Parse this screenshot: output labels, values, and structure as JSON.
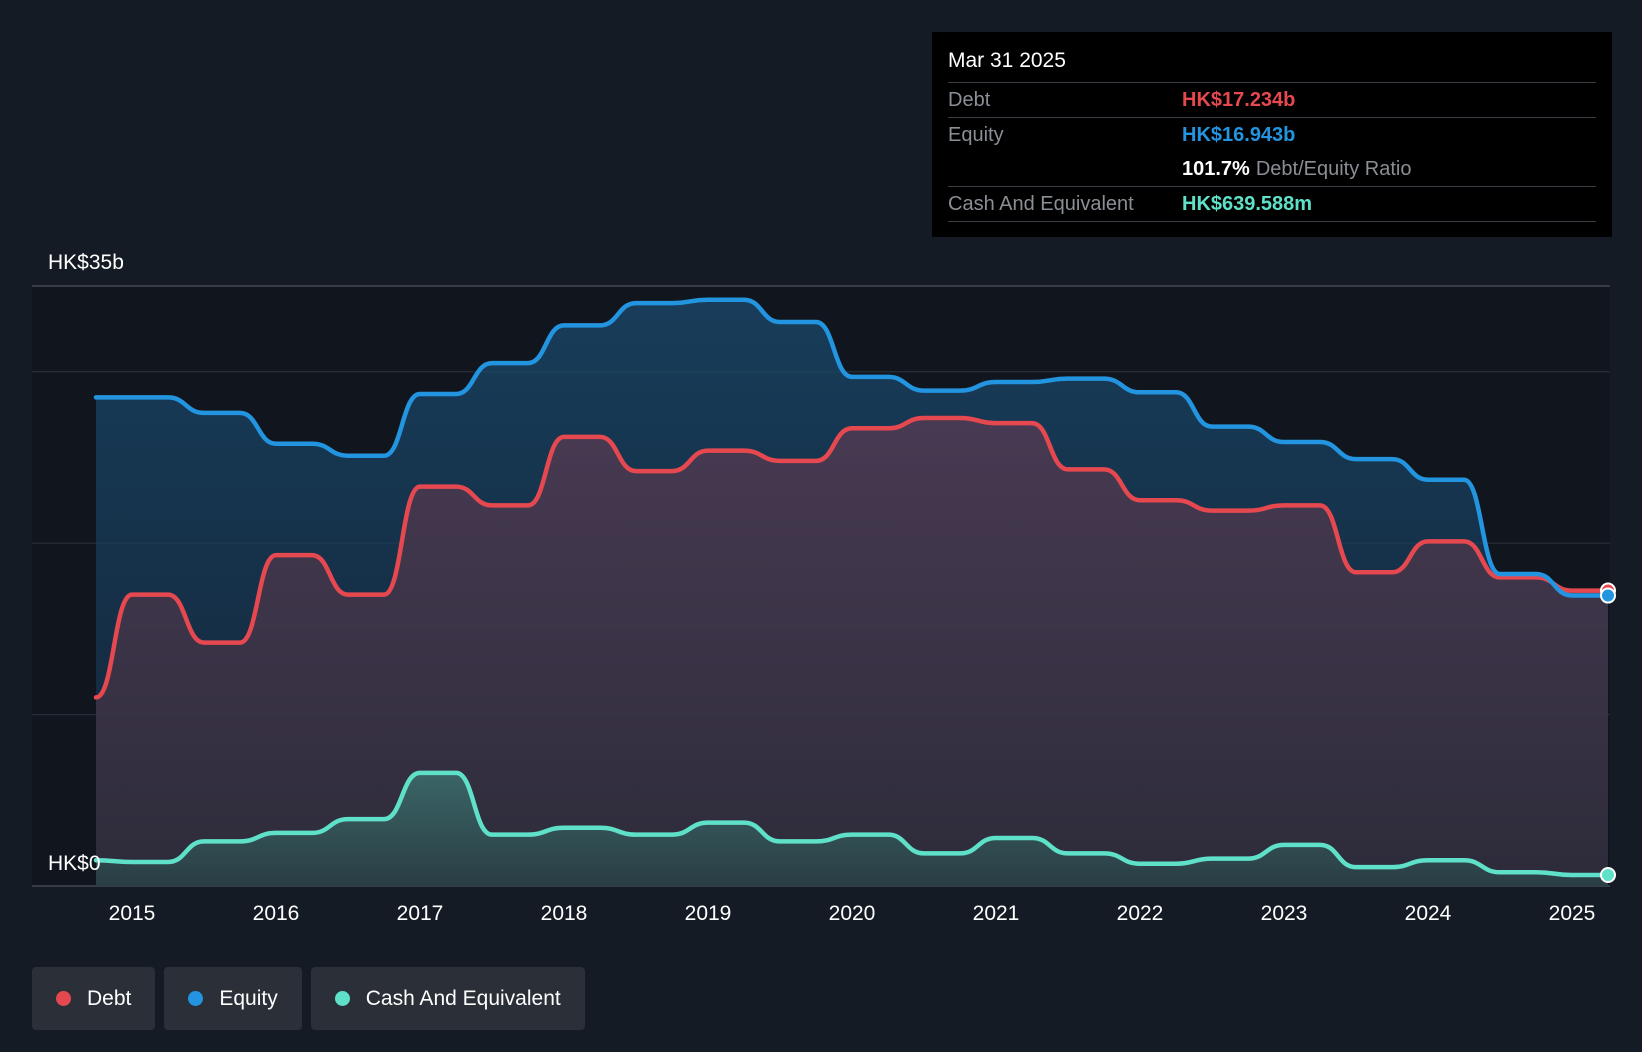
{
  "chart_data": {
    "type": "area",
    "title": "",
    "xlabel": "",
    "ylabel": "",
    "ylim": [
      0,
      35
    ],
    "y_unit": "HK$ billions",
    "y_tick_labels": {
      "top": "HK$35b",
      "bottom": "HK$0"
    },
    "x_tick_labels": [
      "2015",
      "2016",
      "2017",
      "2018",
      "2019",
      "2020",
      "2021",
      "2022",
      "2023",
      "2024",
      "2025"
    ],
    "x_range": [
      2014.75,
      2025.25
    ],
    "series": [
      {
        "name": "Equity",
        "color": "#2394df",
        "x": [
          2014.75,
          2015.0,
          2015.25,
          2015.5,
          2015.75,
          2016.0,
          2016.25,
          2016.5,
          2016.75,
          2017.0,
          2017.25,
          2017.5,
          2017.75,
          2018.0,
          2018.25,
          2018.5,
          2018.75,
          2019.0,
          2019.25,
          2019.5,
          2019.75,
          2020.0,
          2020.25,
          2020.5,
          2020.75,
          2021.0,
          2021.25,
          2021.5,
          2021.75,
          2022.0,
          2022.25,
          2022.5,
          2022.75,
          2023.0,
          2023.25,
          2023.5,
          2023.75,
          2024.0,
          2024.25,
          2024.5,
          2024.75,
          2025.0,
          2025.25
        ],
        "values": [
          28.5,
          28.5,
          28.5,
          27.6,
          27.6,
          25.8,
          25.8,
          25.1,
          25.1,
          28.7,
          28.7,
          30.5,
          30.5,
          32.7,
          32.7,
          34.0,
          34.0,
          34.2,
          34.2,
          32.9,
          32.9,
          29.7,
          29.7,
          28.9,
          28.9,
          29.4,
          29.4,
          29.6,
          29.6,
          28.8,
          28.8,
          26.8,
          26.8,
          25.9,
          25.9,
          24.9,
          24.9,
          23.7,
          23.7,
          18.2,
          18.2,
          16.943,
          16.943
        ]
      },
      {
        "name": "Debt",
        "color": "#e64850",
        "x": [
          2014.75,
          2015.0,
          2015.25,
          2015.5,
          2015.75,
          2016.0,
          2016.25,
          2016.5,
          2016.75,
          2017.0,
          2017.25,
          2017.5,
          2017.75,
          2018.0,
          2018.25,
          2018.5,
          2018.75,
          2019.0,
          2019.25,
          2019.5,
          2019.75,
          2020.0,
          2020.25,
          2020.5,
          2020.75,
          2021.0,
          2021.25,
          2021.5,
          2021.75,
          2022.0,
          2022.25,
          2022.5,
          2022.75,
          2023.0,
          2023.25,
          2023.5,
          2023.75,
          2024.0,
          2024.25,
          2024.5,
          2024.75,
          2025.0,
          2025.25
        ],
        "values": [
          11.0,
          17.0,
          17.0,
          14.2,
          14.2,
          19.3,
          19.3,
          17.0,
          17.0,
          23.3,
          23.3,
          22.2,
          22.2,
          26.2,
          26.2,
          24.2,
          24.2,
          25.4,
          25.4,
          24.8,
          24.8,
          26.7,
          26.7,
          27.3,
          27.3,
          27.0,
          27.0,
          24.3,
          24.3,
          22.5,
          22.5,
          21.9,
          21.9,
          22.2,
          22.2,
          18.3,
          18.3,
          20.1,
          20.1,
          18.0,
          18.0,
          17.234,
          17.234
        ]
      },
      {
        "name": "Cash And Equivalent",
        "color": "#5fe0c8",
        "x": [
          2014.75,
          2015.0,
          2015.25,
          2015.5,
          2015.75,
          2016.0,
          2016.25,
          2016.5,
          2016.75,
          2017.0,
          2017.25,
          2017.5,
          2017.75,
          2018.0,
          2018.25,
          2018.5,
          2018.75,
          2019.0,
          2019.25,
          2019.5,
          2019.75,
          2020.0,
          2020.25,
          2020.5,
          2020.75,
          2021.0,
          2021.25,
          2021.5,
          2021.75,
          2022.0,
          2022.25,
          2022.5,
          2022.75,
          2023.0,
          2023.25,
          2023.5,
          2023.75,
          2024.0,
          2024.25,
          2024.5,
          2024.75,
          2025.0,
          2025.25
        ],
        "values": [
          1.5,
          1.4,
          1.4,
          2.6,
          2.6,
          3.1,
          3.1,
          3.9,
          3.9,
          6.6,
          6.6,
          3.0,
          3.0,
          3.4,
          3.4,
          3.0,
          3.0,
          3.7,
          3.7,
          2.6,
          2.6,
          3.0,
          3.0,
          1.9,
          1.9,
          2.8,
          2.8,
          1.9,
          1.9,
          1.3,
          1.3,
          1.6,
          1.6,
          2.4,
          2.4,
          1.1,
          1.1,
          1.5,
          1.5,
          0.8,
          0.8,
          0.64,
          0.64
        ]
      }
    ],
    "tooltip": {
      "date": "Mar 31 2025",
      "debt_label": "Debt",
      "debt_value": "HK$17.234b",
      "equity_label": "Equity",
      "equity_value": "HK$16.943b",
      "ratio_value": "101.7%",
      "ratio_label": "Debt/Equity Ratio",
      "cash_label": "Cash And Equivalent",
      "cash_value": "HK$639.588m"
    },
    "legend": [
      {
        "label": "Debt",
        "color": "#e64850"
      },
      {
        "label": "Equity",
        "color": "#2394df"
      },
      {
        "label": "Cash And Equivalent",
        "color": "#5fe0c8"
      }
    ]
  }
}
